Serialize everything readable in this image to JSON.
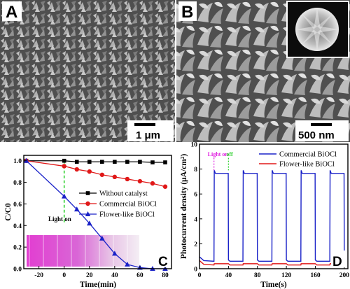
{
  "panels": {
    "a": {
      "letter": "A",
      "scale_bar": "1 μm"
    },
    "b": {
      "letter": "B",
      "scale_bar": "500 nm"
    },
    "c": {
      "letter": "C",
      "annotation": "Light on"
    },
    "d": {
      "letter": "D",
      "annotation_on": "Light on",
      "annotation_off": "off"
    }
  },
  "colors": {
    "black": "#000000",
    "red": "#e01818",
    "blue": "#1a22c8",
    "green": "#2fd02f",
    "magenta": "#e020e0"
  },
  "chart_data": [
    {
      "id": "C",
      "type": "line",
      "xlabel": "Time(min)",
      "ylabel": "C/C0",
      "xlim": [
        -32,
        85
      ],
      "ylim": [
        0,
        1.05
      ],
      "xticks": [
        -20,
        0,
        20,
        40,
        60,
        80
      ],
      "yticks": [
        0.0,
        0.2,
        0.4,
        0.6,
        0.8,
        1.0
      ],
      "legend_position": "center-right",
      "series": [
        {
          "name": "Without catalyst",
          "color": "#000000",
          "marker": "square",
          "x": [
            -30,
            0,
            10,
            20,
            30,
            40,
            50,
            60,
            70,
            80
          ],
          "y": [
            1.0,
            1.0,
            0.99,
            0.99,
            0.99,
            0.99,
            0.99,
            0.99,
            0.985,
            0.985
          ]
        },
        {
          "name": "Commercial BiOCl",
          "color": "#e01818",
          "marker": "circle",
          "x": [
            -30,
            0,
            10,
            20,
            30,
            40,
            50,
            60,
            70,
            80
          ],
          "y": [
            1.0,
            0.95,
            0.92,
            0.9,
            0.87,
            0.85,
            0.83,
            0.81,
            0.79,
            0.76
          ]
        },
        {
          "name": "Flower-like BiOCl",
          "color": "#1a22c8",
          "marker": "triangle",
          "x": [
            -30,
            0,
            10,
            20,
            30,
            40,
            50,
            60,
            70,
            80
          ],
          "y": [
            1.0,
            0.67,
            0.55,
            0.42,
            0.28,
            0.14,
            0.04,
            0.01,
            0.0,
            0.0
          ]
        }
      ],
      "light_on_x": 0
    },
    {
      "id": "D",
      "type": "line",
      "xlabel": "Time(s)",
      "ylabel": "Photocurrent density (μA/cm²)",
      "xlim": [
        0,
        205
      ],
      "ylim": [
        0,
        10
      ],
      "xticks": [
        0,
        40,
        80,
        120,
        160,
        200
      ],
      "yticks": [
        0,
        2,
        4,
        6,
        8,
        10
      ],
      "legend_position": "top-right",
      "light_intervals": [
        [
          20,
          40
        ],
        [
          60,
          80
        ],
        [
          100,
          120
        ],
        [
          140,
          160
        ],
        [
          180,
          200
        ]
      ],
      "light_on_x": 20,
      "light_off_x": 40,
      "series": [
        {
          "name": "Commercial BiOCl",
          "color": "#1a22c8",
          "dark_level": 0.6,
          "light_level": 7.65
        },
        {
          "name": "Flower-like BiOCl",
          "color": "#e01818",
          "dark_level": 0.3,
          "light_level": 0.4
        }
      ]
    }
  ]
}
